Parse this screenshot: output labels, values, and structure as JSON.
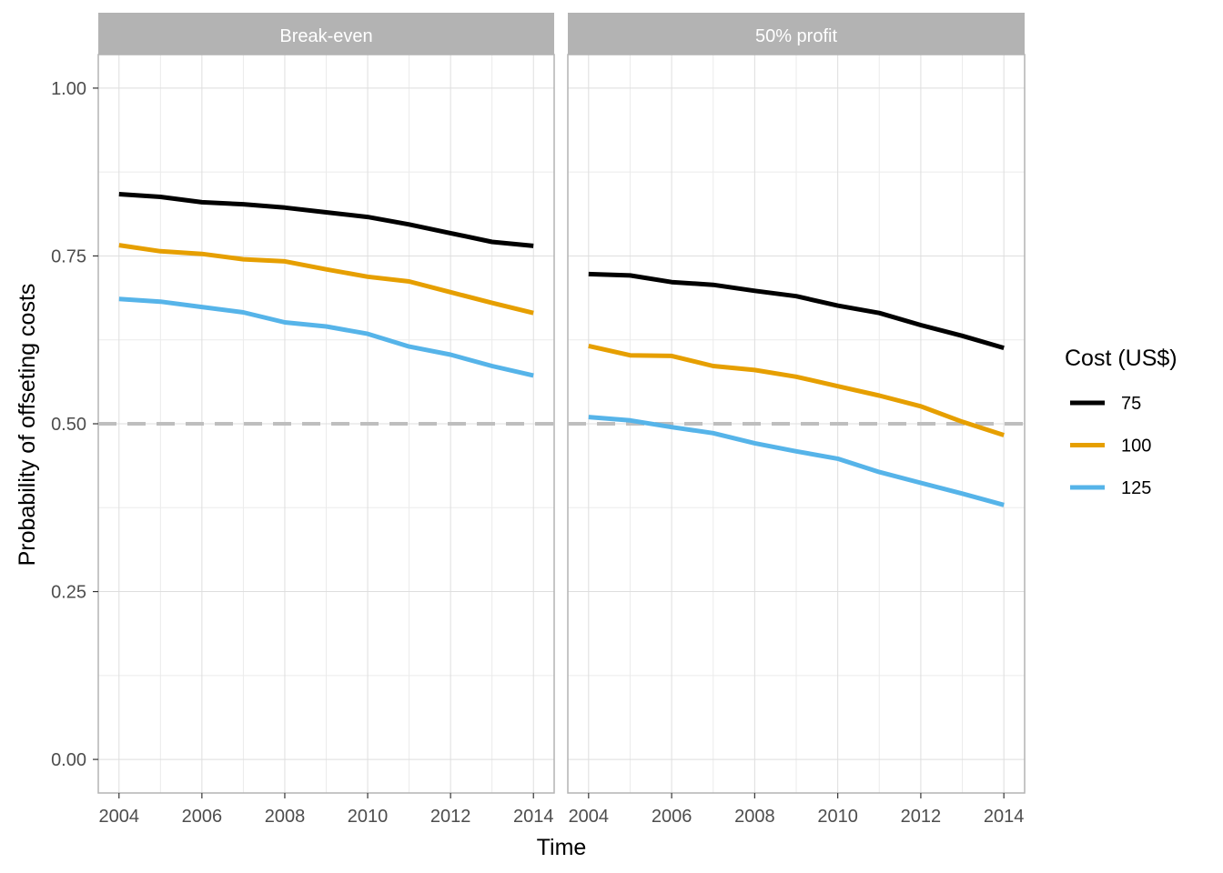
{
  "chart_data": {
    "type": "line",
    "xlabel": "Time",
    "ylabel": "Probability of offseting costs",
    "xlim": [
      2003.5,
      2014.5
    ],
    "ylim": [
      -0.05,
      1.05
    ],
    "x_ticks": [
      2004,
      2006,
      2008,
      2010,
      2012,
      2014
    ],
    "x_tick_labels": [
      "2004",
      "2006",
      "2008",
      "2010",
      "2012",
      "2014"
    ],
    "y_ticks": [
      0,
      0.25,
      0.5,
      0.75,
      1.0
    ],
    "y_tick_labels": [
      "0.00",
      "0.25",
      "0.50",
      "0.75",
      "1.00"
    ],
    "grid": true,
    "reference_line": {
      "y": 0.5,
      "style": "dashed",
      "color": "#bebebe"
    },
    "legend": {
      "title": "Cost (US$)",
      "position": "right",
      "entries": [
        {
          "label": "75",
          "color": "#000000"
        },
        {
          "label": "100",
          "color": "#E69F00"
        },
        {
          "label": "125",
          "color": "#56B4E9"
        }
      ]
    },
    "x": [
      2004,
      2005,
      2006,
      2007,
      2008,
      2009,
      2010,
      2011,
      2012,
      2013,
      2014
    ],
    "panels": [
      {
        "title": "Break-even",
        "series": [
          {
            "name": "75",
            "color": "#000000",
            "values": [
              0.842,
              0.838,
              0.83,
              0.827,
              0.822,
              0.815,
              0.808,
              0.797,
              0.784,
              0.771,
              0.765
            ]
          },
          {
            "name": "100",
            "color": "#E69F00",
            "values": [
              0.766,
              0.757,
              0.753,
              0.745,
              0.742,
              0.73,
              0.719,
              0.712,
              0.696,
              0.68,
              0.665
            ]
          },
          {
            "name": "125",
            "color": "#56B4E9",
            "values": [
              0.686,
              0.682,
              0.674,
              0.666,
              0.651,
              0.645,
              0.634,
              0.615,
              0.603,
              0.586,
              0.572
            ]
          }
        ]
      },
      {
        "title": "50% profit",
        "series": [
          {
            "name": "75",
            "color": "#000000",
            "values": [
              0.723,
              0.721,
              0.711,
              0.707,
              0.698,
              0.69,
              0.676,
              0.665,
              0.647,
              0.631,
              0.613
            ]
          },
          {
            "name": "100",
            "color": "#E69F00",
            "values": [
              0.616,
              0.602,
              0.601,
              0.586,
              0.58,
              0.57,
              0.556,
              0.542,
              0.526,
              0.503,
              0.483
            ]
          },
          {
            "name": "125",
            "color": "#56B4E9",
            "values": [
              0.51,
              0.505,
              0.495,
              0.486,
              0.471,
              0.459,
              0.448,
              0.428,
              0.412,
              0.396,
              0.379
            ]
          }
        ]
      }
    ]
  }
}
